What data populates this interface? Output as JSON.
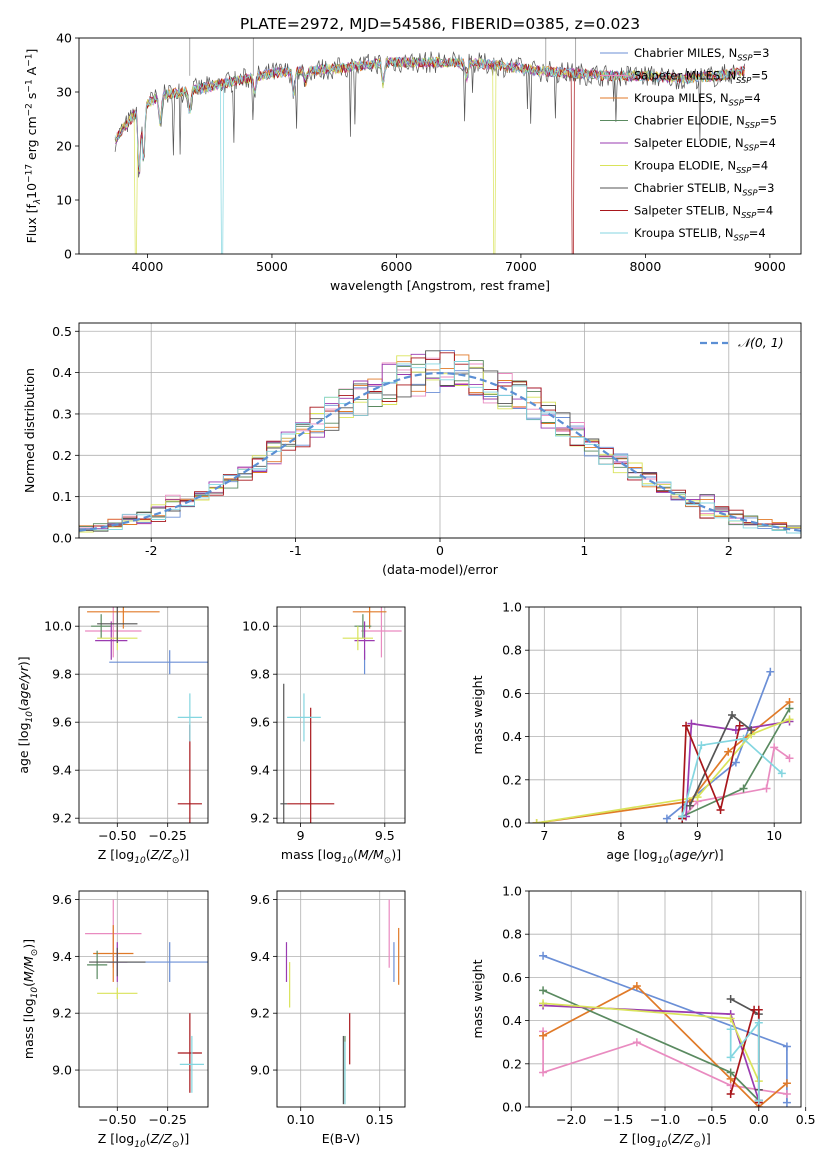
{
  "figure_title": "PLATE=2972, MJD=54586, FIBERID=0385, z=0.023",
  "colors": {
    "Chabrier MILES": "#6b8fd6",
    "Salpeter MILES": "#e98bc0",
    "Kroupa MILES": "#e07a28",
    "Chabrier ELODIE": "#5a8a60",
    "Salpeter ELODIE": "#9a3bb0",
    "Kroupa ELODIE": "#d9e35a",
    "Chabrier STELIB": "#555555",
    "Salpeter STELIB": "#a8161b",
    "Kroupa STELIB": "#84d6e0",
    "normal_curve": "#5b8fd4",
    "grid": "#b0b0b0"
  },
  "chart_data": [
    {
      "id": "spectrum",
      "type": "line",
      "title": "PLATE=2972, MJD=54586, FIBERID=0385, z=0.023",
      "xlabel": "wavelength [Angstrom, rest frame]",
      "ylabel": "Flux [f_λ10^-17 erg cm^-2 s^-1 A^-1]",
      "xlim": [
        3450,
        9250
      ],
      "ylim": [
        0,
        40
      ],
      "xticks": [
        4000,
        5000,
        6000,
        7000,
        8000,
        9000
      ],
      "yticks": [
        0,
        10,
        20,
        30,
        40
      ],
      "grid": false,
      "legend_position": "top-right",
      "legend": [
        "Chabrier MILES, N_SSP=3",
        "Salpeter MILES, N_SSP=5",
        "Kroupa MILES, N_SSP=4",
        "Chabrier ELODIE, N_SSP=5",
        "Salpeter ELODIE, N_SSP=4",
        "Kroupa ELODIE, N_SSP=4",
        "Chabrier STELIB, N_SSP=3",
        "Salpeter STELIB, N_SSP=4",
        "Kroupa STELIB, N_SSP=4"
      ],
      "continuum": {
        "x": [
          3740,
          3800,
          3900,
          4000,
          4150,
          4400,
          4700,
          5000,
          5300,
          5600,
          5900,
          6200,
          6500,
          6800,
          7100,
          7400,
          7700,
          8000,
          8300,
          8600,
          8800
        ],
        "y": [
          21,
          23,
          26,
          28,
          29.5,
          30.5,
          32,
          33.5,
          34,
          34.5,
          35.5,
          35.5,
          35.5,
          35,
          34,
          33.5,
          33,
          33,
          32.5,
          33,
          34
        ]
      }
    },
    {
      "id": "residuals",
      "type": "line",
      "xlabel": "(data-model)/error",
      "ylabel": "Normed distribution",
      "xlim": [
        -2.5,
        2.5
      ],
      "ylim": [
        0,
        0.52
      ],
      "xticks": [
        -2,
        -1,
        0,
        1,
        2
      ],
      "yticks": [
        0.0,
        0.1,
        0.2,
        0.3,
        0.4,
        0.5
      ],
      "grid": true,
      "legend_position": "top-right",
      "legend": [
        "𝒩(0, 1)"
      ],
      "bin_width": 0.1
    },
    {
      "id": "age_vs_Z",
      "type": "scatter",
      "xlabel": "Z [log10(Z/Z⊙)]",
      "ylabel": "age  [log10(age/yr)]",
      "xlim": [
        -0.69,
        -0.05
      ],
      "ylim": [
        9.18,
        10.08
      ],
      "xticks": [
        -0.5,
        -0.25
      ],
      "xticklabels": [
        "−0.50",
        "−0.25"
      ],
      "yticks": [
        9.2,
        9.4,
        9.6,
        9.8,
        10.0
      ],
      "grid": true,
      "points": [
        {
          "model": "Chabrier MILES",
          "x": -0.24,
          "y": 9.85,
          "xerr": 0.3,
          "yerr": 0.05
        },
        {
          "model": "Salpeter MILES",
          "x": -0.52,
          "y": 9.98,
          "xerr": 0.14,
          "yerr": 0.11
        },
        {
          "model": "Kroupa MILES",
          "x": -0.47,
          "y": 10.06,
          "xerr": 0.18,
          "yerr": 0.07
        },
        {
          "model": "Chabrier ELODIE",
          "x": -0.58,
          "y": 10.0,
          "xerr": 0.05,
          "yerr": 0.05
        },
        {
          "model": "Salpeter ELODIE",
          "x": -0.53,
          "y": 9.94,
          "xerr": 0.08,
          "yerr": 0.08
        },
        {
          "model": "Kroupa ELODIE",
          "x": -0.5,
          "y": 9.95,
          "xerr": 0.1,
          "yerr": 0.05
        },
        {
          "model": "Chabrier STELIB",
          "x": -0.5,
          "y": 10.01,
          "xerr": 0.1,
          "yerr": 0.08
        },
        {
          "model": "Salpeter STELIB",
          "x": -0.14,
          "y": 9.26,
          "xerr": 0.06,
          "yerr": 0.33
        },
        {
          "model": "Kroupa STELIB",
          "x": -0.14,
          "y": 9.62,
          "xerr": 0.06,
          "yerr": 0.1
        }
      ]
    },
    {
      "id": "age_vs_mass",
      "type": "scatter",
      "xlabel": "mass [log10(M/M⊙)]",
      "ylabel": "",
      "xlim": [
        8.86,
        9.62
      ],
      "ylim": [
        9.18,
        10.08
      ],
      "xticks": [
        9.0,
        9.5
      ],
      "yticks": [
        9.2,
        9.4,
        9.6,
        9.8,
        10.0
      ],
      "grid": true,
      "points": [
        {
          "model": "Chabrier MILES",
          "x": 9.38,
          "y": 9.85,
          "xerr": 0.0,
          "yerr": 0.05
        },
        {
          "model": "Salpeter MILES",
          "x": 9.48,
          "y": 9.98,
          "xerr": 0.12,
          "yerr": 0.11
        },
        {
          "model": "Kroupa MILES",
          "x": 9.41,
          "y": 10.06,
          "xerr": 0.1,
          "yerr": 0.07
        },
        {
          "model": "Chabrier ELODIE",
          "x": 9.37,
          "y": 10.0,
          "xerr": 0.05,
          "yerr": 0.05
        },
        {
          "model": "Salpeter ELODIE",
          "x": 9.38,
          "y": 9.94,
          "xerr": 0.06,
          "yerr": 0.08
        },
        {
          "model": "Kroupa ELODIE",
          "x": 9.34,
          "y": 9.95,
          "xerr": 0.09,
          "yerr": 0.05
        },
        {
          "model": "Chabrier STELIB",
          "x": 8.9,
          "y": 9.26,
          "xerr": 0.02,
          "yerr": 0.5
        },
        {
          "model": "Salpeter STELIB",
          "x": 9.06,
          "y": 9.26,
          "xerr": 0.14,
          "yerr": 0.4
        },
        {
          "model": "Kroupa STELIB",
          "x": 9.02,
          "y": 9.62,
          "xerr": 0.1,
          "yerr": 0.1
        }
      ]
    },
    {
      "id": "mass_weight_vs_age",
      "type": "line",
      "xlabel": "age  [log10(age/yr)]",
      "ylabel": "mass weight",
      "xlim": [
        6.8,
        10.35
      ],
      "ylim": [
        0.0,
        1.0
      ],
      "xticks": [
        7,
        8,
        9,
        10
      ],
      "yticks": [
        0.0,
        0.2,
        0.4,
        0.6,
        0.8,
        1.0
      ],
      "grid": true,
      "series": [
        {
          "model": "Chabrier MILES",
          "x": [
            8.6,
            9.5,
            9.95
          ],
          "y": [
            0.02,
            0.28,
            0.7
          ]
        },
        {
          "model": "Salpeter MILES",
          "x": [
            8.8,
            9.0,
            9.9,
            10.0,
            10.2
          ],
          "y": [
            0.02,
            0.1,
            0.16,
            0.35,
            0.3
          ]
        },
        {
          "model": "Kroupa MILES",
          "x": [
            6.9,
            8.9,
            9.4,
            10.2
          ],
          "y": [
            0.0,
            0.1,
            0.33,
            0.56
          ]
        },
        {
          "model": "Chabrier ELODIE",
          "x": [
            8.8,
            9.6,
            10.2
          ],
          "y": [
            0.03,
            0.16,
            0.53
          ]
        },
        {
          "model": "Salpeter ELODIE",
          "x": [
            8.85,
            8.92,
            9.5,
            10.2
          ],
          "y": [
            0.03,
            0.46,
            0.43,
            0.47
          ]
        },
        {
          "model": "Kroupa ELODIE",
          "x": [
            6.9,
            9.0,
            9.7,
            10.2
          ],
          "y": [
            0.0,
            0.12,
            0.41,
            0.48
          ]
        },
        {
          "model": "Chabrier STELIB",
          "x": [
            8.9,
            9.45,
            9.7
          ],
          "y": [
            0.08,
            0.5,
            0.43
          ]
        },
        {
          "model": "Salpeter STELIB",
          "x": [
            8.8,
            8.85,
            9.3,
            9.55
          ],
          "y": [
            0.02,
            0.45,
            0.06,
            0.45
          ]
        },
        {
          "model": "Kroupa STELIB",
          "x": [
            8.8,
            9.05,
            9.6,
            10.1
          ],
          "y": [
            0.03,
            0.36,
            0.39,
            0.23
          ]
        }
      ]
    },
    {
      "id": "mass_vs_Z",
      "type": "scatter",
      "xlabel": "Z [log10(Z/Z⊙)]",
      "ylabel": "mass [log10(M/M⊙)]",
      "xlim": [
        -0.69,
        -0.05
      ],
      "ylim": [
        8.87,
        9.63
      ],
      "xticks": [
        -0.5,
        -0.25
      ],
      "xticklabels": [
        "−0.50",
        "−0.25"
      ],
      "yticks": [
        9.0,
        9.2,
        9.4,
        9.6
      ],
      "grid": true,
      "points": [
        {
          "model": "Chabrier MILES",
          "x": -0.24,
          "y": 9.38,
          "xerr": 0.3,
          "yerr": 0.07
        },
        {
          "model": "Salpeter MILES",
          "x": -0.52,
          "y": 9.48,
          "xerr": 0.14,
          "yerr": 0.12
        },
        {
          "model": "Kroupa MILES",
          "x": -0.52,
          "y": 9.41,
          "xerr": 0.1,
          "yerr": 0.1
        },
        {
          "model": "Chabrier ELODIE",
          "x": -0.6,
          "y": 9.37,
          "xerr": 0.05,
          "yerr": 0.05
        },
        {
          "model": "Salpeter ELODIE",
          "x": -0.5,
          "y": 9.38,
          "xerr": 0.05,
          "yerr": 0.07
        },
        {
          "model": "Kroupa ELODIE",
          "x": -0.5,
          "y": 9.27,
          "xerr": 0.1,
          "yerr": 0.02
        },
        {
          "model": "Chabrier STELIB",
          "x": -0.5,
          "y": 9.38,
          "xerr": 0.14,
          "yerr": 0.05
        },
        {
          "model": "Salpeter STELIB",
          "x": -0.14,
          "y": 9.06,
          "xerr": 0.06,
          "yerr": 0.14
        },
        {
          "model": "Kroupa STELIB",
          "x": -0.13,
          "y": 9.02,
          "xerr": 0.06,
          "yerr": 0.1
        }
      ]
    },
    {
      "id": "mass_vs_ebv",
      "type": "scatter",
      "xlabel": "E(B-V)",
      "ylabel": "",
      "xlim": [
        0.085,
        0.166
      ],
      "ylim": [
        8.87,
        9.63
      ],
      "xticks": [
        0.1,
        0.15
      ],
      "xticklabels": [
        "0.10",
        "0.15"
      ],
      "yticks": [
        9.0,
        9.2,
        9.4,
        9.6
      ],
      "grid": true,
      "points": [
        {
          "model": "Chabrier MILES",
          "x": 0.159,
          "y": 9.38,
          "yerr": 0.07
        },
        {
          "model": "Salpeter MILES",
          "x": 0.156,
          "y": 9.48,
          "yerr": 0.12
        },
        {
          "model": "Kroupa MILES",
          "x": 0.162,
          "y": 9.4,
          "yerr": 0.1
        },
        {
          "model": "Chabrier ELODIE",
          "x": 0.128,
          "y": 9.0,
          "yerr": 0.12
        },
        {
          "model": "Salpeter ELODIE",
          "x": 0.091,
          "y": 9.38,
          "yerr": 0.07
        },
        {
          "model": "Kroupa ELODIE",
          "x": 0.093,
          "y": 9.3,
          "yerr": 0.08
        },
        {
          "model": "Chabrier STELIB",
          "x": 0.127,
          "y": 9.0,
          "yerr": 0.12
        },
        {
          "model": "Salpeter STELIB",
          "x": 0.131,
          "y": 9.11,
          "yerr": 0.09
        },
        {
          "model": "Kroupa STELIB",
          "x": 0.128,
          "y": 8.99,
          "yerr": 0.11
        }
      ]
    },
    {
      "id": "mass_weight_vs_Z",
      "type": "line",
      "xlabel": "Z [log10(Z/Z⊙)]",
      "ylabel": "mass weight",
      "xlim": [
        -2.45,
        0.45
      ],
      "ylim": [
        0.0,
        1.0
      ],
      "xticks": [
        -2.0,
        -1.5,
        -1.0,
        -0.5,
        0.0,
        0.5
      ],
      "xticklabels": [
        "−2.0",
        "−1.5",
        "−1.0",
        "−0.5",
        "0.0",
        "0.5"
      ],
      "yticks": [
        0.0,
        0.2,
        0.4,
        0.6,
        0.8,
        1.0
      ],
      "grid": true,
      "series": [
        {
          "model": "Chabrier MILES",
          "x": [
            -2.3,
            0.3,
            0.3
          ],
          "y": [
            0.7,
            0.28,
            0.02
          ]
        },
        {
          "model": "Salpeter MILES",
          "x": [
            -2.3,
            -2.3,
            -1.3,
            -0.3,
            0.3
          ],
          "y": [
            0.35,
            0.16,
            0.3,
            0.1,
            0.06
          ]
        },
        {
          "model": "Kroupa MILES",
          "x": [
            -2.3,
            -1.3,
            -0.3,
            0.0,
            0.3
          ],
          "y": [
            0.33,
            0.56,
            0.13,
            0.0,
            0.11
          ]
        },
        {
          "model": "Chabrier ELODIE",
          "x": [
            -2.3,
            -0.3,
            0.0
          ],
          "y": [
            0.54,
            0.16,
            0.03
          ]
        },
        {
          "model": "Salpeter ELODIE",
          "x": [
            -2.3,
            -0.3,
            0.0
          ],
          "y": [
            0.47,
            0.43,
            0.03
          ]
        },
        {
          "model": "Kroupa ELODIE",
          "x": [
            -2.3,
            -0.3,
            0.0
          ],
          "y": [
            0.48,
            0.41,
            0.12
          ]
        },
        {
          "model": "Chabrier STELIB",
          "x": [
            -0.3,
            0.0,
            0.0
          ],
          "y": [
            0.5,
            0.43,
            0.08
          ]
        },
        {
          "model": "Salpeter STELIB",
          "x": [
            -0.3,
            -0.05,
            0.0,
            0.0
          ],
          "y": [
            0.06,
            0.45,
            0.45,
            0.02
          ]
        },
        {
          "model": "Kroupa STELIB",
          "x": [
            -0.3,
            -0.3,
            0.0,
            0.0
          ],
          "y": [
            0.36,
            0.23,
            0.39,
            0.03
          ]
        }
      ]
    }
  ]
}
